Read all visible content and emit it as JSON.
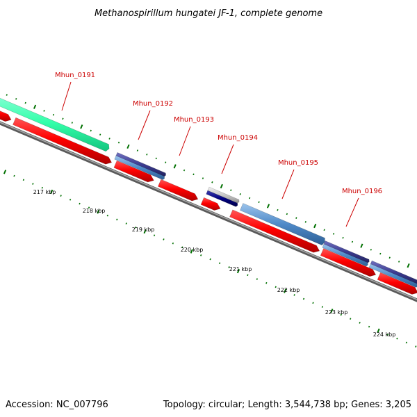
{
  "title": "Methanospirillum hungatei JF-1, complete genome",
  "footer": {
    "accession": "Accession: NC_007796",
    "summary": "Topology: circular; Length: 3,544,738 bp; Genes: 3,205"
  },
  "colors": {
    "forward_cds": "#ff0000",
    "gene_label": "#cc0000",
    "backbone": "#808080",
    "tick": "#007000",
    "teal_feature": "#33ffaa",
    "purple_feature": "#3c3c90",
    "blue_feature": "#4f8ac8",
    "navy_feature": "#000080",
    "gray_feature": "#bdbdbd"
  },
  "scale_labels": [
    "217 kbp",
    "218 kbp",
    "219 kbp",
    "220 kbp",
    "221 kbp",
    "222 kbp",
    "223 kbp",
    "224 kbp"
  ],
  "genes": [
    {
      "label": "Mhun_0191"
    },
    {
      "label": "Mhun_0192"
    },
    {
      "label": "Mhun_0193"
    },
    {
      "label": "Mhun_0194"
    },
    {
      "label": "Mhun_0195"
    },
    {
      "label": "Mhun_0196"
    }
  ]
}
